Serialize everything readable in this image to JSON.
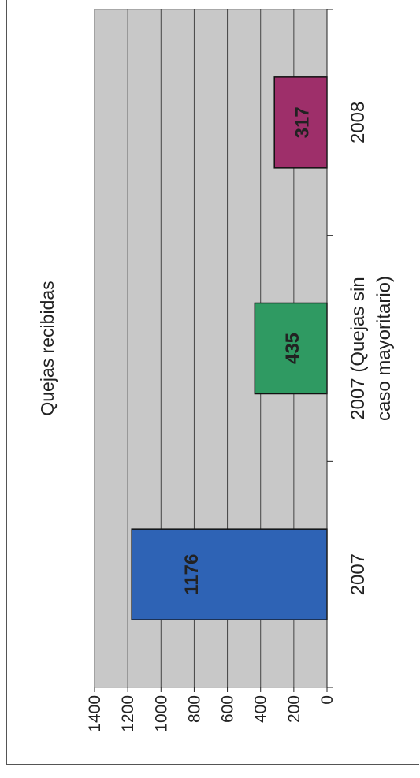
{
  "chart_data": {
    "type": "bar",
    "orientation": "vertical bars, figure rotated 90° counter-clockwise",
    "title": "Quejas recibidas",
    "categories": [
      "2007",
      "2007 (Quejas sin caso mayoritario)",
      "2008"
    ],
    "category_lines": [
      [
        "2007"
      ],
      [
        "2007 (Quejas sin",
        "caso mayoritario)"
      ],
      [
        "2008"
      ]
    ],
    "values": [
      1176,
      435,
      317
    ],
    "value_labels": [
      "1176",
      "435",
      "317"
    ],
    "bar_colors": [
      "#2e63b5",
      "#2f9a62",
      "#9e2f6a"
    ],
    "plot_background": "#c8c8c8",
    "ylim": [
      0,
      1400
    ],
    "yticks": [
      0,
      200,
      400,
      600,
      800,
      1000,
      1200,
      1400
    ],
    "ytick_labels": [
      "0",
      "200",
      "400",
      "600",
      "800",
      "1000",
      "1200",
      "1400"
    ],
    "grid": true,
    "legend": "none"
  }
}
